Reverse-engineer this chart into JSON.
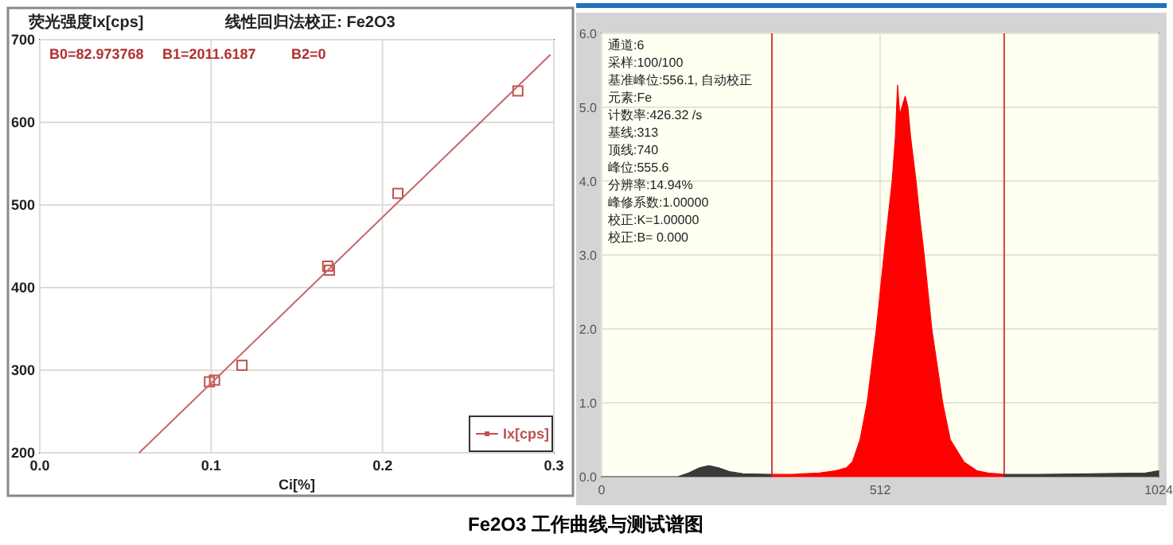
{
  "chart_data": [
    {
      "type": "scatter",
      "title": "线性回归法校正: Fe2O3",
      "ylabel": "荧光强度Ix[cps]",
      "xlabel": "Ci[%]",
      "xlim": [
        0,
        0.3
      ],
      "ylim": [
        200,
        700
      ],
      "xticks": [
        {
          "value": 0,
          "label": "0.0"
        },
        0.1,
        0.2,
        0.3
      ],
      "yticks": [
        200,
        300,
        400,
        500,
        600,
        700
      ],
      "grid": true,
      "legend": "bottom right",
      "series": [
        {
          "name": "Ix[cps]",
          "marker": "square",
          "color": "#c0504d",
          "x": [
            0.099,
            0.102,
            0.118,
            0.168,
            0.169,
            0.209,
            0.279
          ],
          "values": [
            286,
            288,
            306,
            426,
            421,
            514,
            638
          ]
        },
        {
          "type": "line",
          "color": "#c86464",
          "x": [
            0.058,
            0.298
          ],
          "values": [
            200,
            682
          ]
        }
      ],
      "annotations": [
        "B0=82.973768",
        "B1=2011.6187",
        "B2=0",
        "Fe2O3 工作曲线与测试谱图"
      ]
    },
    {
      "type": "area",
      "xlim": [
        0,
        1024
      ],
      "ylim": [
        0,
        6
      ],
      "xticks": [
        0,
        512,
        1024
      ],
      "yticks": [
        {
          "value": 0,
          "label": "0.0"
        },
        {
          "value": 1,
          "label": "1.0"
        },
        {
          "value": 2,
          "label": "2.0"
        },
        {
          "value": 3,
          "label": "3.0"
        },
        {
          "value": 4,
          "label": "4.0"
        },
        {
          "value": 5,
          "label": "5.0"
        },
        {
          "value": 6,
          "label": "6.0"
        }
      ],
      "grid": true,
      "series": [
        {
          "color": "#3a3a3a",
          "x": [
            0,
            140,
            160,
            180,
            197,
            215,
            235,
            260,
            313
          ],
          "values": [
            0,
            0,
            0.05,
            0.12,
            0.15,
            0.12,
            0.07,
            0.04,
            0.03
          ]
        },
        {
          "color": "#ff0000",
          "x": [
            313,
            350,
            400,
            430,
            450,
            461,
            475,
            488,
            505,
            519,
            534,
            540,
            544,
            548,
            552,
            558,
            563,
            568,
            578,
            585,
            593,
            607,
            627,
            641,
            666,
            690,
            710,
            740
          ],
          "values": [
            0.03,
            0.03,
            0.05,
            0.08,
            0.12,
            0.2,
            0.5,
            1.0,
            2.0,
            3.0,
            4.0,
            4.6,
            5.3,
            4.9,
            5.0,
            5.15,
            5.0,
            4.6,
            4.0,
            3.5,
            3.0,
            2.0,
            1.0,
            0.5,
            0.2,
            0.08,
            0.05,
            0.03
          ]
        },
        {
          "color": "#3a3a3a",
          "x": [
            740,
            800,
            900,
            1000,
            1024
          ],
          "values": [
            0.03,
            0.03,
            0.04,
            0.05,
            0.08
          ]
        }
      ],
      "ref_lines": [
        {
          "axis": "x",
          "value": 313,
          "color": "#d04040"
        },
        {
          "axis": "x",
          "value": 740,
          "color": "#d04040"
        }
      ],
      "annotations": [
        "通道:6",
        "采样:100/100",
        "基准峰位:556.1, 自动校正",
        "元素:Fe",
        "计数率:426.32 /s",
        "基线:313",
        "顶线:740",
        "峰位:555.6",
        "分辨率:14.94%",
        "峰修系数:1.00000",
        "校正:K=1.00000",
        "校正:B=  0.000"
      ]
    }
  ]
}
